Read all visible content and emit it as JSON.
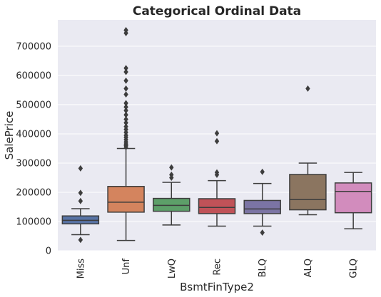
{
  "chart_data": {
    "type": "box",
    "title": "Categorical Ordinal Data",
    "xlabel": "BsmtFinType2",
    "ylabel": "SalePrice",
    "ylim": [
      0,
      790000
    ],
    "yticks": [
      0,
      100000,
      200000,
      300000,
      400000,
      500000,
      600000,
      700000
    ],
    "ytick_labels": [
      "0",
      "100000",
      "200000",
      "300000",
      "400000",
      "500000",
      "600000",
      "700000"
    ],
    "grid": true,
    "background": "#eaeaf2",
    "categories": [
      "Miss",
      "Unf",
      "LwQ",
      "Rec",
      "BLQ",
      "ALQ",
      "GLQ"
    ],
    "boxes": [
      {
        "category": "Miss",
        "color": "#5873a5",
        "whisker_low": 55000,
        "q1": 92000,
        "median": 104000,
        "q3": 119000,
        "whisker_high": 144000,
        "outliers": [
          37000,
          170000,
          198000,
          282000
        ]
      },
      {
        "category": "Unf",
        "color": "#d4845e",
        "whisker_low": 35000,
        "q1": 132000,
        "median": 166000,
        "q3": 220000,
        "whisker_high": 350000,
        "outliers": [
          355000,
          360000,
          365000,
          372000,
          380000,
          388000,
          395000,
          405000,
          415000,
          425000,
          438000,
          450000,
          465000,
          480000,
          492000,
          505000,
          535000,
          555000,
          582000,
          612000,
          625000,
          745000,
          755000
        ]
      },
      {
        "category": "LwQ",
        "color": "#5d9f69",
        "whisker_low": 88000,
        "q1": 135000,
        "median": 155000,
        "q3": 179000,
        "whisker_high": 234000,
        "outliers": [
          250000,
          260000,
          285000
        ]
      },
      {
        "category": "Rec",
        "color": "#c05258",
        "whisker_low": 84000,
        "q1": 127000,
        "median": 148000,
        "q3": 178000,
        "whisker_high": 240000,
        "outliers": [
          260000,
          268000,
          375000,
          402000
        ]
      },
      {
        "category": "BLQ",
        "color": "#7b74a4",
        "whisker_low": 84000,
        "q1": 127000,
        "median": 143000,
        "q3": 172000,
        "whisker_high": 230000,
        "outliers": [
          62000,
          270000
        ]
      },
      {
        "category": "ALQ",
        "color": "#8b7560",
        "whisker_low": 123000,
        "q1": 140000,
        "median": 175000,
        "q3": 261000,
        "whisker_high": 300000,
        "outliers": [
          555000
        ]
      },
      {
        "category": "GLQ",
        "color": "#d28cbd",
        "whisker_low": 75000,
        "q1": 130000,
        "median": 203000,
        "q3": 232000,
        "whisker_high": 268000,
        "outliers": []
      }
    ]
  }
}
